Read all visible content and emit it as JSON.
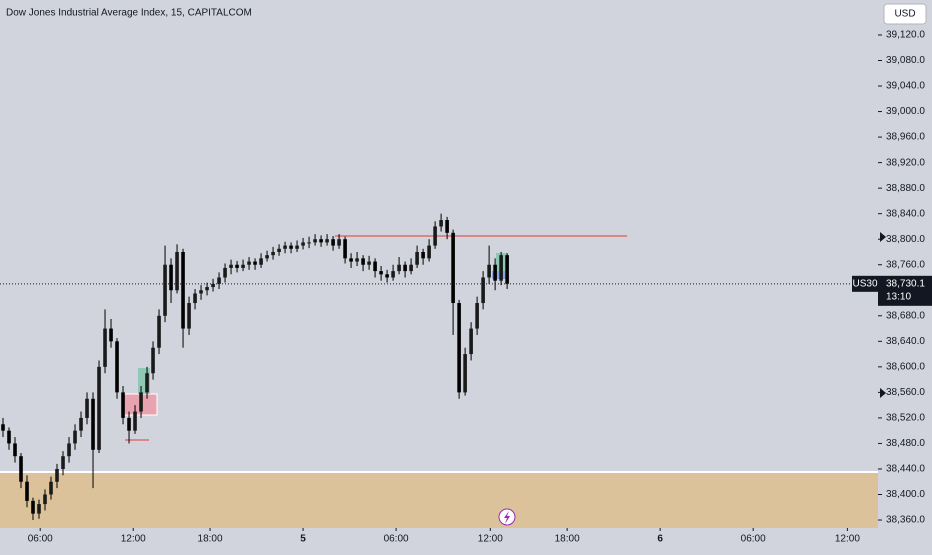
{
  "chart_data": {
    "type": "candlestick",
    "title": "Dow Jones Industrial Average Index, 15, CAPITALCOM",
    "currency": "USD",
    "colors": {
      "up": "#1a1a1a",
      "down": "#000000",
      "wick": "#000000"
    },
    "x": [
      0,
      1,
      2,
      3,
      4,
      5,
      6,
      7,
      8,
      9,
      10,
      11,
      12,
      13,
      14,
      15,
      16,
      17,
      18,
      19,
      20,
      21,
      22,
      23,
      24,
      25,
      26,
      27,
      28,
      29,
      30,
      31,
      32,
      33,
      34,
      35,
      36,
      37,
      38,
      39,
      40,
      41,
      42,
      43,
      44,
      45,
      46,
      47,
      48,
      49,
      50,
      51,
      52,
      53,
      54,
      55,
      56,
      57,
      58,
      59,
      60,
      61,
      62,
      63,
      64,
      65,
      66,
      67,
      68,
      69,
      70,
      71,
      72,
      73,
      74,
      75,
      76,
      77,
      78,
      79,
      80,
      81,
      82,
      83,
      84
    ],
    "ohlc": [
      [
        38510,
        38520,
        38490,
        38500
      ],
      [
        38500,
        38505,
        38470,
        38480
      ],
      [
        38480,
        38490,
        38450,
        38460
      ],
      [
        38460,
        38465,
        38410,
        38420
      ],
      [
        38420,
        38430,
        38380,
        38390
      ],
      [
        38390,
        38395,
        38360,
        38370
      ],
      [
        38370,
        38392,
        38362,
        38385
      ],
      [
        38385,
        38408,
        38375,
        38400
      ],
      [
        38400,
        38428,
        38392,
        38420
      ],
      [
        38420,
        38448,
        38410,
        38440
      ],
      [
        38440,
        38468,
        38430,
        38460
      ],
      [
        38460,
        38490,
        38450,
        38480
      ],
      [
        38480,
        38510,
        38470,
        38500
      ],
      [
        38500,
        38530,
        38490,
        38520
      ],
      [
        38520,
        38560,
        38510,
        38550
      ],
      [
        38550,
        38560,
        38410,
        38470
      ],
      [
        38470,
        38610,
        38465,
        38600
      ],
      [
        38600,
        38690,
        38590,
        38660
      ],
      [
        38660,
        38675,
        38630,
        38640
      ],
      [
        38640,
        38645,
        38550,
        38560
      ],
      [
        38560,
        38570,
        38510,
        38520
      ],
      [
        38520,
        38530,
        38480,
        38500
      ],
      [
        38500,
        38540,
        38495,
        38530
      ],
      [
        38530,
        38570,
        38520,
        38560
      ],
      [
        38560,
        38600,
        38550,
        38590
      ],
      [
        38590,
        38640,
        38580,
        38630
      ],
      [
        38630,
        38690,
        38620,
        38680
      ],
      [
        38680,
        38790,
        38670,
        38760
      ],
      [
        38760,
        38770,
        38700,
        38720
      ],
      [
        38720,
        38792,
        38715,
        38780
      ],
      [
        38780,
        38785,
        38630,
        38660
      ],
      [
        38660,
        38710,
        38650,
        38700
      ],
      [
        38700,
        38722,
        38690,
        38715
      ],
      [
        38715,
        38728,
        38705,
        38720
      ],
      [
        38720,
        38732,
        38712,
        38725
      ],
      [
        38725,
        38738,
        38718,
        38730
      ],
      [
        38730,
        38748,
        38722,
        38740
      ],
      [
        38740,
        38762,
        38732,
        38755
      ],
      [
        38755,
        38768,
        38745,
        38760
      ],
      [
        38760,
        38766,
        38748,
        38755
      ],
      [
        38755,
        38768,
        38750,
        38760
      ],
      [
        38760,
        38772,
        38752,
        38765
      ],
      [
        38765,
        38770,
        38752,
        38760
      ],
      [
        38760,
        38778,
        38755,
        38770
      ],
      [
        38770,
        38782,
        38765,
        38775
      ],
      [
        38775,
        38788,
        38768,
        38780
      ],
      [
        38780,
        38792,
        38774,
        38785
      ],
      [
        38785,
        38796,
        38778,
        38790
      ],
      [
        38790,
        38795,
        38778,
        38785
      ],
      [
        38785,
        38798,
        38780,
        38790
      ],
      [
        38790,
        38802,
        38784,
        38795
      ],
      [
        38795,
        38804,
        38786,
        38795
      ],
      [
        38795,
        38808,
        38790,
        38800
      ],
      [
        38800,
        38806,
        38788,
        38795
      ],
      [
        38795,
        38808,
        38790,
        38800
      ],
      [
        38800,
        38805,
        38782,
        38790
      ],
      [
        38790,
        38808,
        38785,
        38800
      ],
      [
        38800,
        38804,
        38762,
        38770
      ],
      [
        38770,
        38778,
        38755,
        38765
      ],
      [
        38765,
        38780,
        38758,
        38770
      ],
      [
        38770,
        38775,
        38750,
        38760
      ],
      [
        38760,
        38774,
        38752,
        38765
      ],
      [
        38765,
        38770,
        38740,
        38750
      ],
      [
        38750,
        38758,
        38735,
        38745
      ],
      [
        38745,
        38752,
        38732,
        38740
      ],
      [
        38740,
        38760,
        38735,
        38750
      ],
      [
        38750,
        38772,
        38745,
        38760
      ],
      [
        38760,
        38765,
        38740,
        38750
      ],
      [
        38750,
        38770,
        38745,
        38760
      ],
      [
        38760,
        38790,
        38755,
        38780
      ],
      [
        38780,
        38785,
        38760,
        38770
      ],
      [
        38770,
        38800,
        38765,
        38790
      ],
      [
        38790,
        38828,
        38785,
        38820
      ],
      [
        38820,
        38840,
        38812,
        38830
      ],
      [
        38830,
        38835,
        38800,
        38810
      ],
      [
        38810,
        38815,
        38650,
        38700
      ],
      [
        38700,
        38705,
        38550,
        38560
      ],
      [
        38560,
        38630,
        38555,
        38620
      ],
      [
        38620,
        38670,
        38610,
        38660
      ],
      [
        38660,
        38710,
        38650,
        38700
      ],
      [
        38700,
        38750,
        38690,
        38740
      ],
      [
        38740,
        38790,
        38730,
        38760
      ],
      [
        38760,
        38770,
        38720,
        38735
      ],
      [
        38735,
        38780,
        38728,
        38775
      ],
      [
        38775,
        38778,
        38722,
        38730.1
      ]
    ],
    "ylim": [
      38347.5,
      39174.8
    ],
    "yticks": [
      {
        "value": 38360,
        "label": "38,360.0"
      },
      {
        "value": 38400,
        "label": "38,400.0"
      },
      {
        "value": 38440,
        "label": "38,440.0"
      },
      {
        "value": 38480,
        "label": "38,480.0"
      },
      {
        "value": 38520,
        "label": "38,520.0"
      },
      {
        "value": 38560,
        "label": "38,560.0"
      },
      {
        "value": 38600,
        "label": "38,600.0"
      },
      {
        "value": 38640,
        "label": "38,640.0"
      },
      {
        "value": 38680,
        "label": "38,680.0"
      },
      {
        "value": 38720,
        "label": "38,720.0"
      },
      {
        "value": 38760,
        "label": "38,760.0"
      },
      {
        "value": 38800,
        "label": "38,800.0"
      },
      {
        "value": 38840,
        "label": "38,840.0"
      },
      {
        "value": 38880,
        "label": "38,880.0"
      },
      {
        "value": 38920,
        "label": "38,920.0"
      },
      {
        "value": 38960,
        "label": "38,960.0"
      },
      {
        "value": 39000,
        "label": "39,000.0"
      },
      {
        "value": 39040,
        "label": "39,040.0"
      },
      {
        "value": 39080,
        "label": "39,080.0"
      },
      {
        "value": 39120,
        "label": "39,120.0"
      }
    ],
    "xlim": [
      -0.5,
      145.8
    ],
    "xticks": [
      {
        "value": 6.2,
        "label": "06:00"
      },
      {
        "value": 21.7,
        "label": "12:00"
      },
      {
        "value": 34.5,
        "label": "18:00"
      },
      {
        "value": 50,
        "label": "5"
      },
      {
        "value": 65.5,
        "label": "06:00"
      },
      {
        "value": 81.2,
        "label": "12:00"
      },
      {
        "value": 94,
        "label": "18:00"
      },
      {
        "value": 109.5,
        "label": "6"
      },
      {
        "value": 125,
        "label": "06:00"
      },
      {
        "value": 140.7,
        "label": "12:00"
      }
    ],
    "last_price": {
      "value": 38730.1,
      "label": "38,730.1",
      "symbol": "US30",
      "countdown": "13:10"
    }
  }
}
